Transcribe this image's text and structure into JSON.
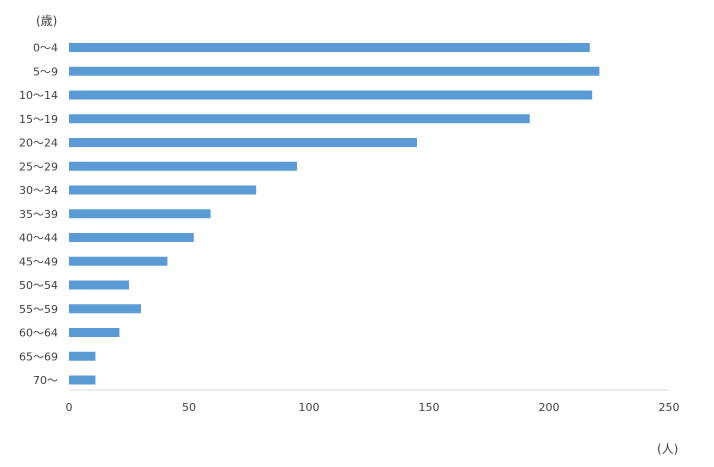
{
  "chart_data": {
    "type": "bar",
    "orientation": "horizontal",
    "ylabel": "(歳)",
    "xlabel": "(人)",
    "categories": [
      "0〜4",
      "5〜9",
      "10〜14",
      "15〜19",
      "20〜24",
      "25〜29",
      "30〜34",
      "35〜39",
      "40〜44",
      "45〜49",
      "50〜54",
      "55〜59",
      "60〜64",
      "65〜69",
      "70〜"
    ],
    "values": [
      217,
      221,
      218,
      192,
      145,
      95,
      78,
      59,
      52,
      41,
      25,
      30,
      21,
      11,
      11
    ],
    "xlim": [
      0,
      250
    ],
    "xticks": [
      0,
      50,
      100,
      150,
      200,
      250
    ],
    "grid": false,
    "legend": "none",
    "bar_color": "#5b9bd5",
    "axis_color": "#d9d9d9"
  }
}
